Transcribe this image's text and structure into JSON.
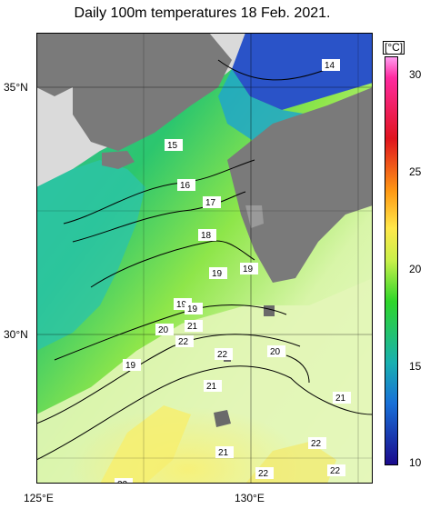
{
  "title": "Daily 100m temperatures 18 Feb. 2021.",
  "axes": {
    "lat_labels": [
      "35°N",
      "30°N"
    ],
    "lon_labels": [
      "125°E",
      "130°E"
    ]
  },
  "colorbar": {
    "unit": "[°C]",
    "ticks": [
      "30",
      "25",
      "20",
      "15",
      "10"
    ]
  },
  "isotherm_labels": [
    "14",
    "15",
    "16",
    "17",
    "18",
    "19",
    "19",
    "19",
    "19",
    "20",
    "21",
    "22",
    "22",
    "19",
    "20",
    "21",
    "21",
    "22",
    "21",
    "22",
    "22",
    "22"
  ]
}
